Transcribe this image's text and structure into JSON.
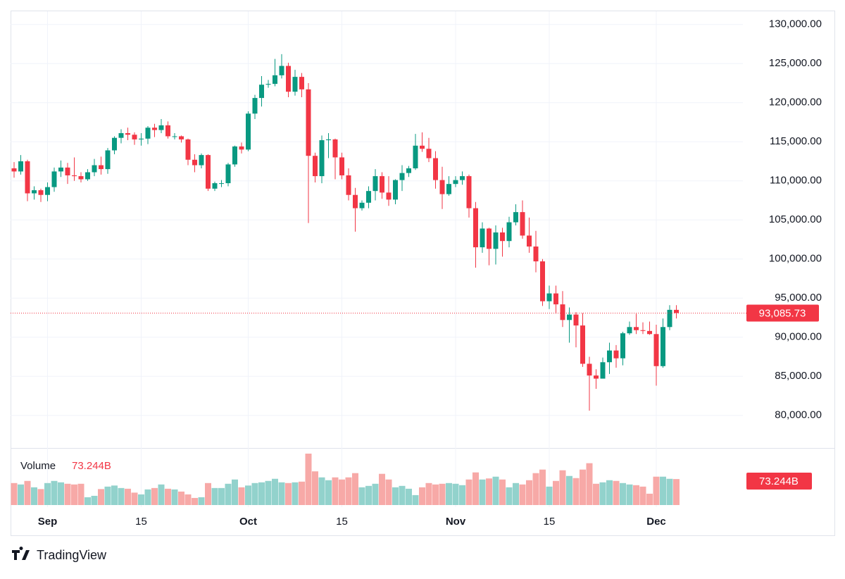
{
  "chart_data": {
    "type": "candlestick",
    "ylim": [
      76100,
      131600
    ],
    "yticks": [
      {
        "value": 130000,
        "label": "130,000.00"
      },
      {
        "value": 125000,
        "label": "125,000.00"
      },
      {
        "value": 120000,
        "label": "120,000.00"
      },
      {
        "value": 115000,
        "label": "115,000.00"
      },
      {
        "value": 110000,
        "label": "110,000.00"
      },
      {
        "value": 105000,
        "label": "105,000.00"
      },
      {
        "value": 100000,
        "label": "100,000.00"
      },
      {
        "value": 95000,
        "label": "95,000.00"
      },
      {
        "value": 90000,
        "label": "90,000.00"
      },
      {
        "value": 85000,
        "label": "85,000.00"
      },
      {
        "value": 80000,
        "label": "80,000.00"
      }
    ],
    "xticks": [
      {
        "value": 5,
        "label": "Sep"
      },
      {
        "value": 19,
        "label": "15"
      },
      {
        "value": 35,
        "label": "Oct"
      },
      {
        "value": 49,
        "label": "15"
      },
      {
        "value": 66,
        "label": "Nov"
      },
      {
        "value": 80,
        "label": "15"
      },
      {
        "value": 96,
        "label": "Dec"
      }
    ],
    "grid": true,
    "up_color": "#089981",
    "down_color": "#f23645",
    "open": [
      111600,
      111200,
      112500,
      108400,
      108800,
      108200,
      109200,
      111200,
      111700,
      110700,
      110600,
      110200,
      111100,
      112000,
      111500,
      113900,
      115500,
      116100,
      115900,
      115300,
      115400,
      116800,
      116500,
      117100,
      115700,
      115700,
      115300,
      112700,
      112000,
      113300,
      109000,
      109700,
      109700,
      112100,
      114400,
      114000,
      118600,
      120600,
      122300,
      122400,
      123500,
      124700,
      121400,
      123300,
      121700,
      113200,
      110600,
      115200,
      115300,
      113000,
      110700,
      108200,
      106500,
      107200,
      108700,
      110600,
      108500,
      107600,
      110100,
      111000,
      111600,
      114500,
      114100,
      112900,
      110100,
      108300,
      109600,
      110100,
      110600,
      106500,
      101500,
      103900,
      101300,
      103400,
      102300,
      104700,
      106000,
      103000,
      101600,
      99700,
      94600,
      95600,
      94200,
      92200,
      92900,
      91500,
      86600,
      85100,
      84700,
      86800,
      88300,
      87300,
      90500,
      91300,
      90900,
      90800,
      90400,
      86300,
      91300,
      93500
    ],
    "high": [
      112400,
      113300,
      112700,
      109300,
      109000,
      109800,
      111700,
      112600,
      112300,
      113000,
      111100,
      111500,
      112800,
      113100,
      114200,
      115700,
      116600,
      116800,
      116200,
      116100,
      117000,
      117300,
      117900,
      117600,
      116100,
      115800,
      115400,
      113400,
      113500,
      113400,
      109900,
      110100,
      112300,
      114500,
      114900,
      118900,
      121000,
      123400,
      122900,
      125600,
      126200,
      125100,
      124200,
      123800,
      122500,
      113600,
      115800,
      116100,
      115400,
      113600,
      111600,
      109100,
      107500,
      109300,
      111500,
      111100,
      110600,
      110200,
      112000,
      111900,
      116000,
      116200,
      115500,
      113800,
      111800,
      110600,
      110600,
      111200,
      110800,
      107300,
      104700,
      104000,
      104300,
      104000,
      105400,
      107000,
      107500,
      105300,
      103600,
      100000,
      96600,
      96600,
      95900,
      93800,
      93200,
      93100,
      87500,
      85900,
      87400,
      89300,
      89000,
      90700,
      92000,
      93000,
      91900,
      92000,
      91600,
      92400,
      94100,
      94100
    ],
    "low": [
      110400,
      110800,
      107400,
      107600,
      107300,
      107400,
      108600,
      110500,
      109600,
      110000,
      109800,
      110000,
      110600,
      110800,
      110900,
      113400,
      114800,
      115200,
      114600,
      114500,
      114700,
      115600,
      116100,
      115400,
      115300,
      114900,
      112000,
      111100,
      111600,
      108700,
      108700,
      109200,
      109300,
      111800,
      113500,
      113800,
      117900,
      119500,
      121900,
      122100,
      123100,
      120700,
      120900,
      120700,
      104600,
      109800,
      109700,
      112900,
      110200,
      110200,
      107500,
      103500,
      106200,
      106500,
      107500,
      107700,
      106800,
      107000,
      108700,
      110500,
      111400,
      113700,
      112400,
      109000,
      106400,
      108100,
      109200,
      109500,
      105300,
      98900,
      100800,
      99200,
      99300,
      100300,
      101500,
      104300,
      102600,
      100800,
      98300,
      94000,
      93600,
      93000,
      91300,
      89300,
      88700,
      86200,
      80600,
      83400,
      84700,
      85300,
      86100,
      86400,
      90300,
      90400,
      90400,
      90300,
      83800,
      86100,
      90900,
      92400
    ],
    "close": [
      111200,
      112500,
      108400,
      108800,
      108200,
      109200,
      111200,
      111700,
      110700,
      110600,
      110200,
      111100,
      112000,
      111500,
      113900,
      115500,
      116100,
      115900,
      115300,
      115400,
      116800,
      116500,
      117100,
      115700,
      115700,
      115300,
      112700,
      112000,
      113300,
      109000,
      109700,
      109700,
      112100,
      114400,
      114000,
      118600,
      120600,
      122300,
      122400,
      123500,
      124700,
      121400,
      123300,
      121700,
      113200,
      110600,
      115200,
      115300,
      113000,
      110700,
      108200,
      106500,
      107200,
      108700,
      110600,
      108500,
      107600,
      110100,
      111000,
      111600,
      114500,
      114100,
      112900,
      110100,
      108300,
      109600,
      110100,
      110600,
      106500,
      101500,
      103900,
      101300,
      103400,
      102300,
      104700,
      106000,
      103000,
      101600,
      99700,
      94600,
      95600,
      94200,
      92200,
      92900,
      91500,
      86600,
      85100,
      84700,
      86800,
      88300,
      87300,
      90500,
      91300,
      90900,
      90800,
      90400,
      86300,
      91300,
      93500,
      93085.73
    ],
    "last_price": {
      "value": 93085.73,
      "label": "93,085.73"
    },
    "volume": {
      "name": "Volume",
      "up_color": "#92d2cc",
      "down_color": "#f7a9a7",
      "values": [
        62,
        58,
        68,
        50,
        45,
        62,
        68,
        64,
        60,
        58,
        60,
        22,
        26,
        45,
        52,
        55,
        48,
        46,
        35,
        30,
        44,
        48,
        58,
        46,
        44,
        38,
        30,
        20,
        22,
        62,
        48,
        48,
        60,
        72,
        50,
        55,
        62,
        64,
        68,
        74,
        64,
        62,
        64,
        66,
        145,
        95,
        78,
        70,
        78,
        72,
        78,
        90,
        50,
        54,
        60,
        88,
        72,
        50,
        54,
        46,
        28,
        50,
        62,
        58,
        60,
        62,
        60,
        56,
        72,
        92,
        72,
        75,
        80,
        72,
        50,
        62,
        58,
        70,
        90,
        100,
        52,
        68,
        98,
        82,
        76,
        100,
        118,
        60,
        64,
        70,
        68,
        62,
        58,
        56,
        52,
        32,
        80,
        80,
        74,
        73.244
      ],
      "last": {
        "value": 73.244,
        "label": "73.244B"
      }
    }
  },
  "branding": "TradingView"
}
